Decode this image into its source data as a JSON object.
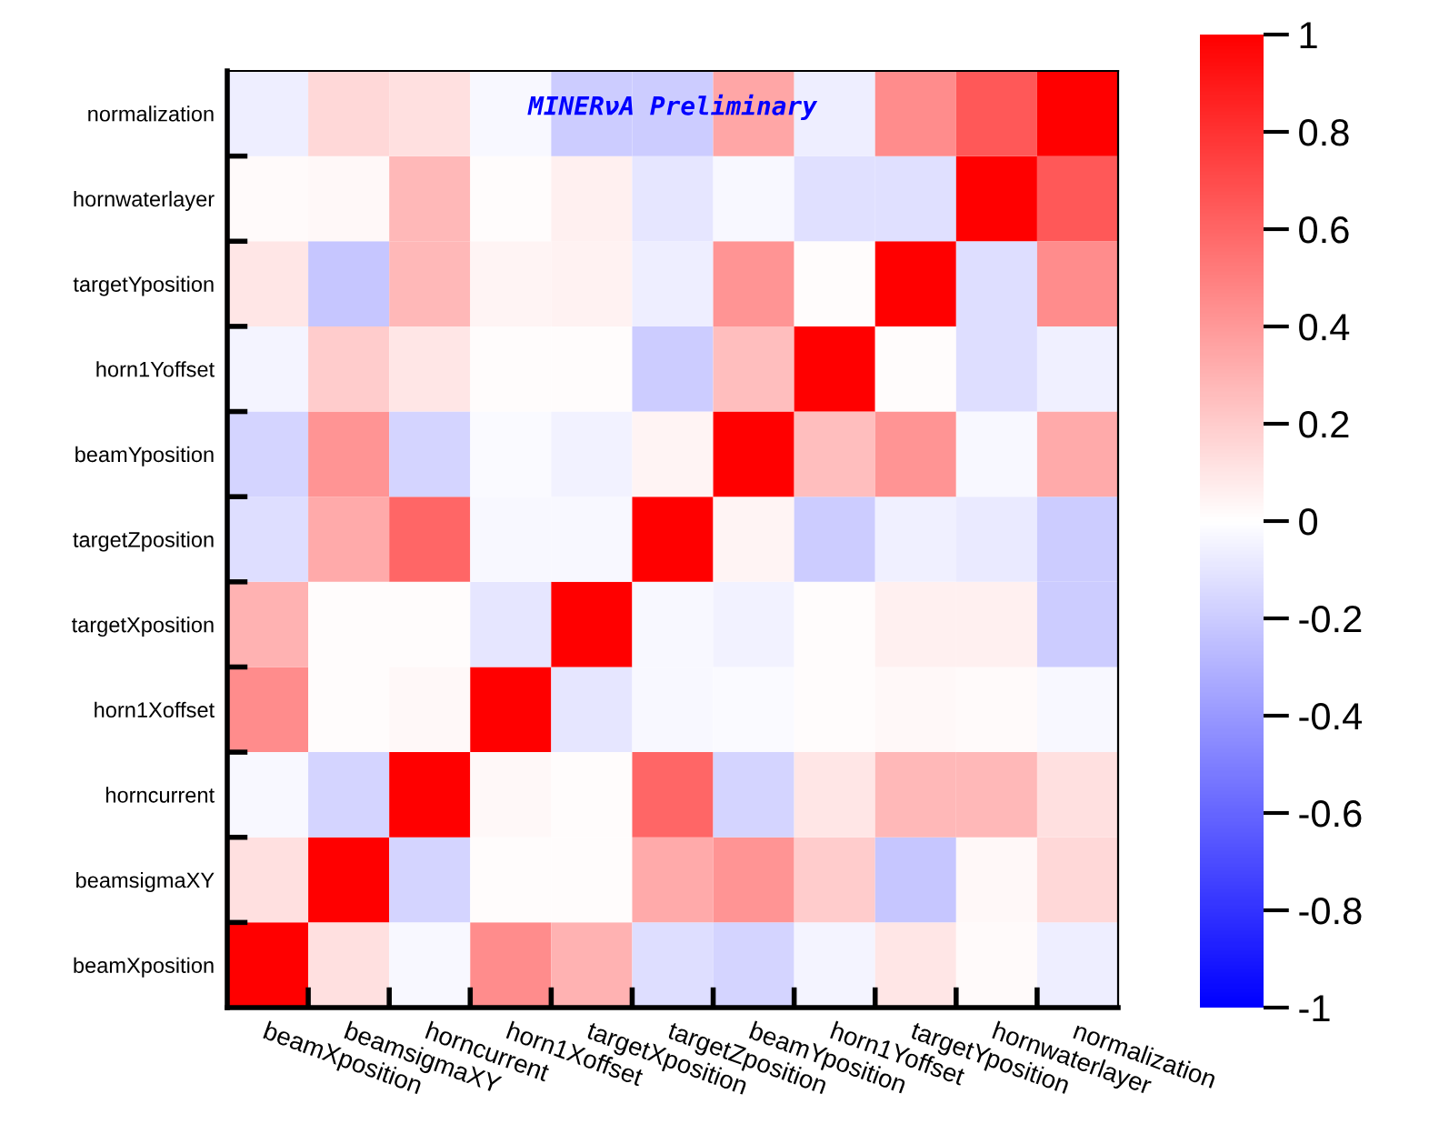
{
  "chart_data": {
    "type": "heatmap",
    "categories": [
      "beamXposition",
      "beamsigmaXY",
      "horncurrent",
      "horn1Xoffset",
      "targetXposition",
      "targetZposition",
      "beamYposition",
      "horn1Yoffset",
      "targetYposition",
      "hornwaterlayer",
      "normalization"
    ],
    "y_categories": [
      "normalization",
      "hornwaterlayer",
      "targetYposition",
      "horn1Yoffset",
      "beamYposition",
      "targetZposition",
      "targetXposition",
      "horn1Xoffset",
      "horncurrent",
      "beamsigmaXY",
      "beamXposition"
    ],
    "cells": [
      [
        -0.07,
        0.15,
        0.12,
        -0.03,
        -0.2,
        -0.2,
        0.35,
        -0.07,
        0.45,
        0.65,
        1
      ],
      [
        0.02,
        0.03,
        0.28,
        0.01,
        0.06,
        -0.1,
        -0.03,
        -0.12,
        -0.12,
        1,
        0.65
      ],
      [
        0.1,
        -0.22,
        0.28,
        0.04,
        0.05,
        -0.07,
        0.42,
        0.01,
        1,
        -0.13,
        0.45
      ],
      [
        -0.04,
        0.2,
        0.1,
        0.01,
        0.01,
        -0.2,
        0.25,
        1,
        0.01,
        -0.13,
        -0.06
      ],
      [
        -0.17,
        0.42,
        -0.17,
        -0.02,
        -0.05,
        0.04,
        1,
        0.25,
        0.42,
        -0.03,
        0.33
      ],
      [
        -0.13,
        0.33,
        0.6,
        -0.03,
        -0.03,
        1,
        0.04,
        -0.2,
        -0.06,
        -0.08,
        -0.2
      ],
      [
        0.3,
        0.01,
        0.01,
        -0.1,
        1,
        -0.03,
        -0.05,
        0.01,
        0.06,
        0.06,
        -0.2
      ],
      [
        0.45,
        0.01,
        0.03,
        1,
        -0.1,
        -0.03,
        -0.02,
        0.01,
        0.03,
        0.02,
        -0.03
      ],
      [
        -0.03,
        -0.17,
        1,
        0.03,
        0.01,
        0.6,
        -0.17,
        0.1,
        0.28,
        0.28,
        0.12
      ],
      [
        0.12,
        1,
        -0.17,
        0.01,
        0.01,
        0.33,
        0.42,
        0.2,
        -0.22,
        0.03,
        0.15
      ],
      [
        1,
        0.12,
        -0.03,
        0.45,
        0.3,
        -0.13,
        -0.17,
        -0.04,
        0.1,
        0.02,
        -0.07
      ]
    ],
    "clim": [
      -1,
      1
    ],
    "cticks": [
      -1,
      -0.8,
      -0.6,
      -0.4,
      -0.2,
      0,
      0.2,
      0.4,
      0.6,
      0.8,
      1
    ],
    "annotations": [
      "MINERνA Preliminary"
    ]
  }
}
